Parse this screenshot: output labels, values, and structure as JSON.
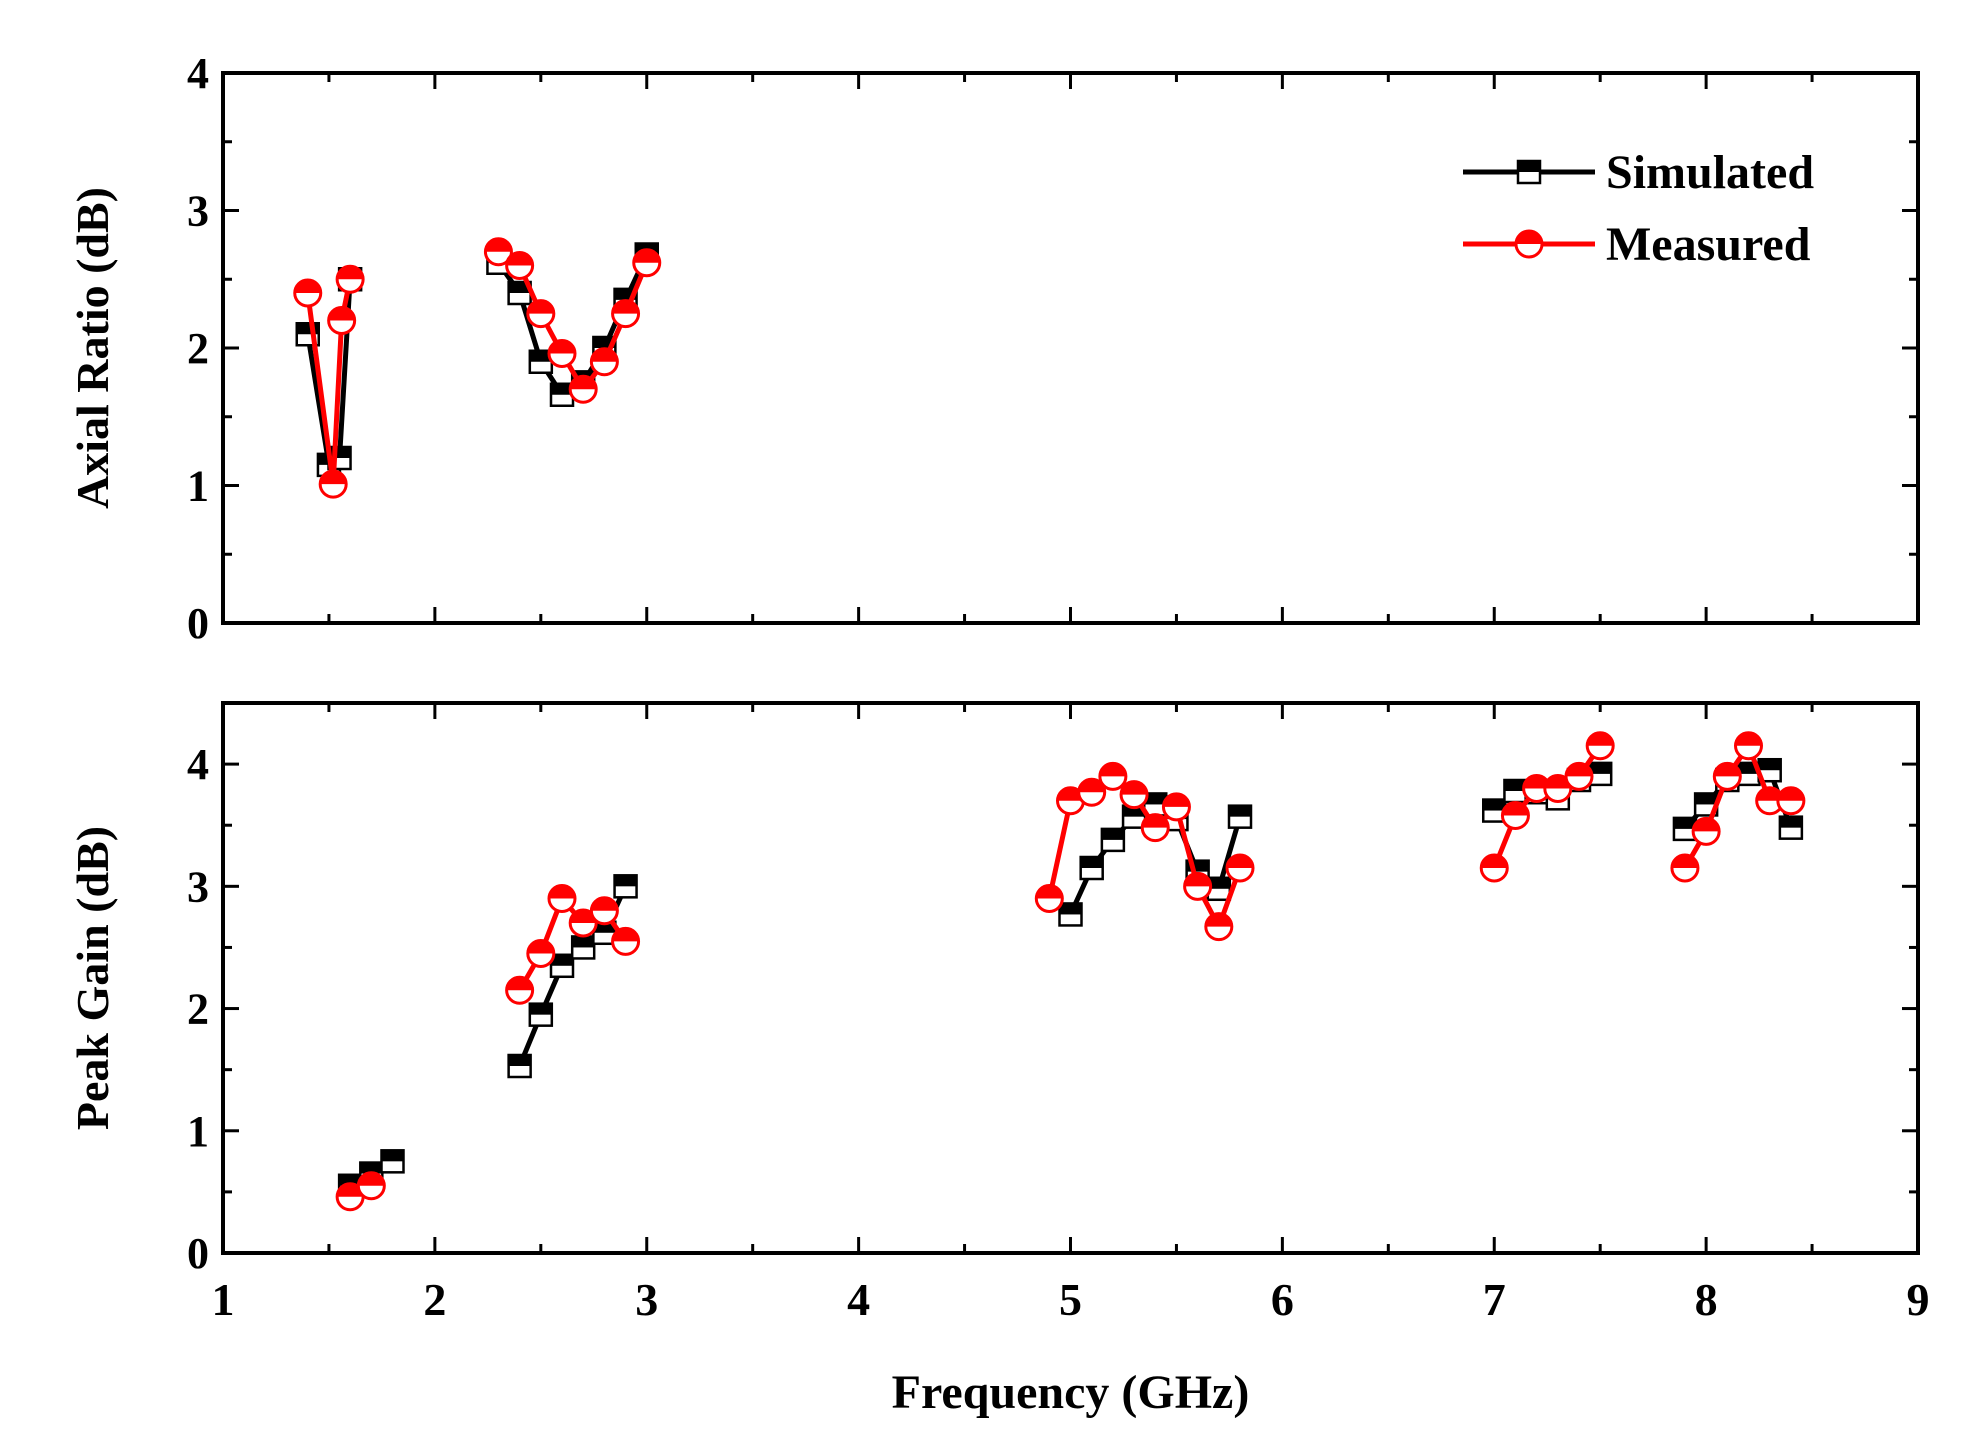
{
  "chart_data": [
    {
      "id": "axial",
      "type": "line",
      "ylabel": "Axial Ratio (dB)",
      "xlabel": "",
      "xlim": [
        1,
        9
      ],
      "ylim": [
        0,
        4
      ],
      "yticks": [
        0,
        1,
        2,
        3,
        4
      ],
      "xticks": [
        1,
        2,
        3,
        4,
        5,
        6,
        7,
        8,
        9
      ],
      "grid": false,
      "series": [
        {
          "name": "Simulated",
          "color": "#000000",
          "marker": "square-half",
          "segments": [
            [
              [
                1.4,
                2.1
              ],
              [
                1.5,
                1.15
              ],
              [
                1.55,
                1.2
              ],
              [
                1.6,
                2.5
              ]
            ],
            [
              [
                2.3,
                2.62
              ],
              [
                2.4,
                2.4
              ],
              [
                2.5,
                1.9
              ],
              [
                2.6,
                1.66
              ],
              [
                2.7,
                1.75
              ],
              [
                2.8,
                2.0
              ],
              [
                2.9,
                2.35
              ],
              [
                3.0,
                2.68
              ]
            ]
          ]
        },
        {
          "name": "Measured",
          "color": "#ff0000",
          "marker": "circle-half",
          "segments": [
            [
              [
                1.4,
                2.4
              ],
              [
                1.52,
                1.01
              ],
              [
                1.56,
                2.2
              ],
              [
                1.6,
                2.5
              ]
            ],
            [
              [
                2.3,
                2.7
              ],
              [
                2.4,
                2.6
              ],
              [
                2.5,
                2.25
              ],
              [
                2.6,
                1.96
              ],
              [
                2.7,
                1.7
              ],
              [
                2.8,
                1.9
              ],
              [
                2.9,
                2.25
              ],
              [
                3.0,
                2.62
              ]
            ]
          ]
        }
      ],
      "legend": {
        "position": "top-right",
        "entries": [
          "Simulated",
          "Measured"
        ]
      }
    },
    {
      "id": "gain",
      "type": "line",
      "ylabel": "Peak Gain (dB)",
      "xlabel": "Frequency (GHz)",
      "xlim": [
        1,
        9
      ],
      "ylim": [
        0,
        4.5
      ],
      "yticks": [
        0,
        1,
        2,
        3,
        4
      ],
      "xticks": [
        1,
        2,
        3,
        4,
        5,
        6,
        7,
        8,
        9
      ],
      "grid": false,
      "series": [
        {
          "name": "Simulated",
          "color": "#000000",
          "marker": "square-half",
          "segments": [
            [
              [
                1.6,
                0.55
              ],
              [
                1.7,
                0.65
              ],
              [
                1.8,
                0.75
              ]
            ],
            [
              [
                2.4,
                1.53
              ],
              [
                2.5,
                1.95
              ],
              [
                2.6,
                2.35
              ],
              [
                2.7,
                2.5
              ],
              [
                2.8,
                2.62
              ],
              [
                2.9,
                3.0
              ]
            ],
            [
              [
                5.0,
                2.77
              ],
              [
                5.1,
                3.15
              ],
              [
                5.2,
                3.38
              ],
              [
                5.3,
                3.57
              ],
              [
                5.4,
                3.67
              ],
              [
                5.5,
                3.55
              ],
              [
                5.6,
                3.12
              ],
              [
                5.7,
                2.98
              ],
              [
                5.8,
                3.57
              ]
            ],
            [
              [
                7.0,
                3.62
              ],
              [
                7.1,
                3.78
              ],
              [
                7.2,
                3.77
              ],
              [
                7.3,
                3.72
              ],
              [
                7.4,
                3.87
              ],
              [
                7.5,
                3.92
              ]
            ],
            [
              [
                7.9,
                3.47
              ],
              [
                8.0,
                3.67
              ],
              [
                8.1,
                3.87
              ],
              [
                8.2,
                3.92
              ],
              [
                8.3,
                3.95
              ],
              [
                8.4,
                3.48
              ]
            ]
          ]
        },
        {
          "name": "Measured",
          "color": "#ff0000",
          "marker": "circle-half",
          "segments": [
            [
              [
                1.6,
                0.46
              ],
              [
                1.7,
                0.55
              ]
            ],
            [
              [
                2.4,
                2.15
              ],
              [
                2.5,
                2.45
              ],
              [
                2.6,
                2.9
              ],
              [
                2.7,
                2.7
              ],
              [
                2.8,
                2.8
              ],
              [
                2.9,
                2.55
              ]
            ],
            [
              [
                4.9,
                2.9
              ],
              [
                5.0,
                3.7
              ],
              [
                5.1,
                3.77
              ],
              [
                5.2,
                3.9
              ],
              [
                5.3,
                3.75
              ],
              [
                5.4,
                3.48
              ],
              [
                5.5,
                3.65
              ],
              [
                5.6,
                3.0
              ],
              [
                5.7,
                2.67
              ],
              [
                5.8,
                3.15
              ]
            ],
            [
              [
                7.0,
                3.15
              ],
              [
                7.1,
                3.58
              ],
              [
                7.2,
                3.8
              ],
              [
                7.3,
                3.8
              ],
              [
                7.4,
                3.9
              ],
              [
                7.5,
                4.15
              ]
            ],
            [
              [
                7.9,
                3.15
              ],
              [
                8.0,
                3.45
              ],
              [
                8.1,
                3.9
              ],
              [
                8.2,
                4.15
              ],
              [
                8.3,
                3.7
              ],
              [
                8.4,
                3.7
              ]
            ]
          ]
        }
      ]
    }
  ]
}
